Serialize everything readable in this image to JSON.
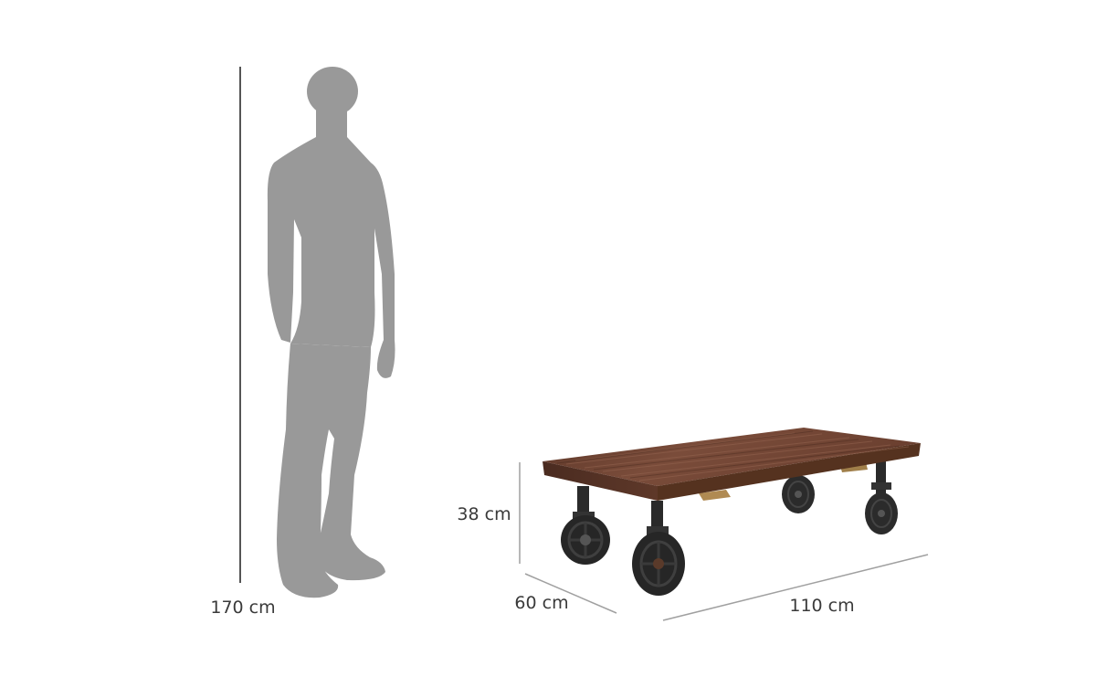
{
  "dimensions": {
    "person_height": "170 cm",
    "table_height": "38 cm",
    "table_depth": "60 cm",
    "table_width": "110 cm"
  },
  "illustration": {
    "figure": "person-silhouette",
    "product": "wooden-coffee-table-on-cast-iron-wheels"
  },
  "colors": {
    "background": "#ffffff",
    "silhouette": "#999999",
    "dimension_line": "#a0a0a0",
    "label_text": "#3a3a3a",
    "wood_top": "#6b4232",
    "wood_edge": "#4e2e22",
    "iron": "#2a2a2a"
  }
}
